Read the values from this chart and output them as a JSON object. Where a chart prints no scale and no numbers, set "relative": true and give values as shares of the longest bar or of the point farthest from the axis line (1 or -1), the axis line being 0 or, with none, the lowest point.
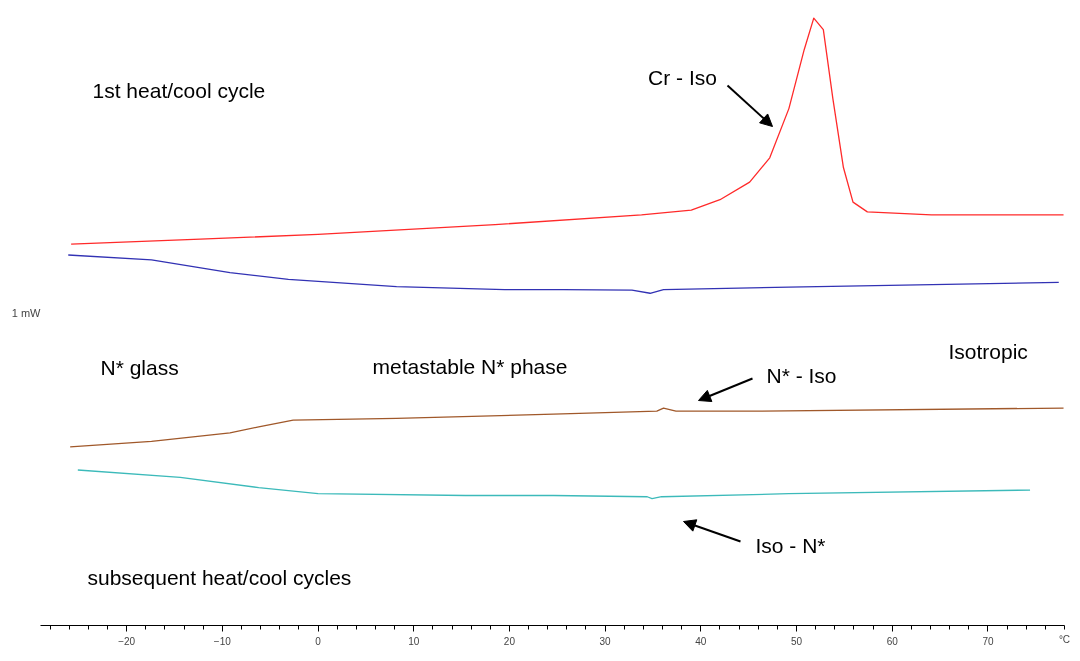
{
  "chart_data": {
    "type": "line",
    "relative": true,
    "xlabel": "°C",
    "ylabel": "1 mW",
    "xlim": [
      -29,
      78
    ],
    "xticks": [
      -20,
      -10,
      0,
      10,
      20,
      30,
      40,
      50,
      60,
      70
    ],
    "grid": false,
    "marker": "none",
    "line_style": "solid",
    "series": [
      {
        "color": "#ff2a2a",
        "x": [
          -25.8,
          -12.3,
          0,
          18.5,
          33.8,
          39,
          42,
          45.1,
          47.2,
          49.2,
          50.8,
          51.8,
          52.8,
          53.8,
          54.9,
          55.9,
          57.4,
          64.1,
          77.9
        ],
        "values": [
          0.628,
          0.636,
          0.644,
          0.66,
          0.676,
          0.684,
          0.701,
          0.73,
          0.77,
          0.851,
          0.948,
          1.0,
          0.981,
          0.867,
          0.754,
          0.697,
          0.681,
          0.676,
          0.676
        ]
      },
      {
        "color": "#3232b4",
        "x": [
          -26.1,
          -17.4,
          -9.2,
          -3.1,
          8.2,
          19.5,
          25.6,
          32.8,
          34.7,
          36.1,
          49.2,
          77.4
        ],
        "values": [
          0.61,
          0.602,
          0.581,
          0.57,
          0.558,
          0.553,
          0.553,
          0.552,
          0.547,
          0.553,
          0.557,
          0.565
        ]
      },
      {
        "color": "#a0582a",
        "x": [
          -25.9,
          -17.4,
          -9.2,
          -6.2,
          -2.6,
          8.2,
          24.6,
          35.4,
          36.1,
          37.4,
          46.2,
          77.9
        ],
        "values": [
          0.294,
          0.303,
          0.317,
          0.327,
          0.338,
          0.341,
          0.348,
          0.353,
          0.358,
          0.353,
          0.353,
          0.358
        ]
      },
      {
        "color": "#3cbaba",
        "x": [
          -25.1,
          -14.4,
          -6.2,
          0,
          15.4,
          24.6,
          34.4,
          34.9,
          35.9,
          49.2,
          74.4
        ],
        "values": [
          0.256,
          0.244,
          0.227,
          0.217,
          0.214,
          0.214,
          0.212,
          0.209,
          0.212,
          0.217,
          0.223
        ]
      }
    ],
    "annotations": [
      "1st heat/cool cycle",
      "N* glass",
      "metastable N* phase",
      "Isotropic",
      "subsequent heat/cool cycles",
      "Cr - Iso",
      "N* - Iso",
      "Iso - N*"
    ]
  }
}
